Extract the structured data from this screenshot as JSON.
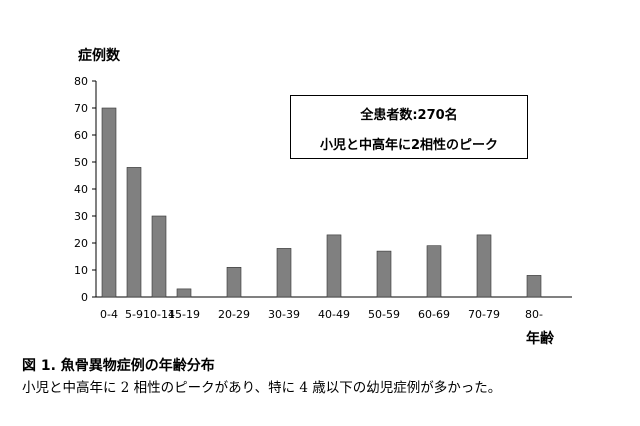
{
  "chart_data": {
    "type": "bar",
    "ylabel": "症例数",
    "xlabel": "年齢",
    "ylim": [
      0,
      80
    ],
    "yticks": [
      0,
      10,
      20,
      30,
      40,
      50,
      60,
      70,
      80
    ],
    "categories": [
      "0-4",
      "5-9",
      "10-14",
      "15-19",
      "20-29",
      "30-39",
      "40-49",
      "50-59",
      "60-69",
      "70-79",
      "80-"
    ],
    "values": [
      70,
      48,
      30,
      3,
      11,
      18,
      23,
      17,
      19,
      23,
      8
    ],
    "bar_color": "#808080",
    "grid": false,
    "annotation": {
      "line1": "全患者数:270名",
      "line2": "小児と中高年に2相性のピーク"
    }
  },
  "caption": {
    "title": "図 1. 魚骨異物症例の年齢分布",
    "text": "小児と中高年に 2 相性のピークがあり、特に 4 歳以下の幼児症例が多かった。"
  }
}
